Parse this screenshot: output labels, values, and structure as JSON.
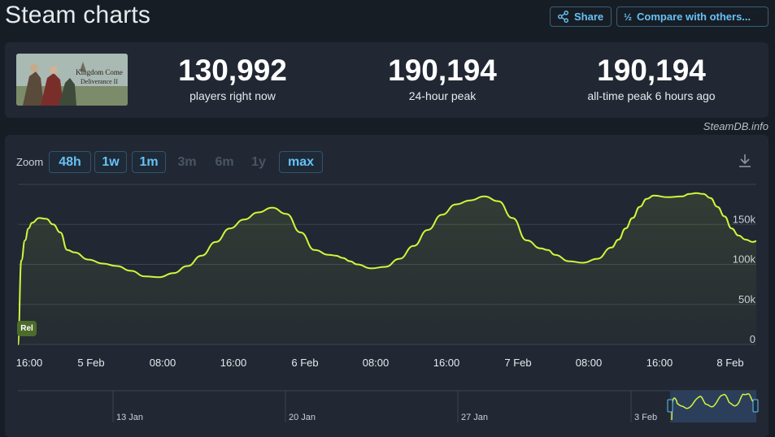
{
  "page": {
    "title": "Steam charts",
    "share_label": "Share",
    "compare_label": "Compare with others...",
    "watermark": "SteamDB.info"
  },
  "game": {
    "image_name": "Kingdom Come Deliverance II",
    "image_text": "Kingdom Come Deliverance"
  },
  "stats": [
    {
      "value": "130,992",
      "label": "players right now"
    },
    {
      "value": "190,194",
      "label": "24-hour peak"
    },
    {
      "value": "190,194",
      "label": "all-time peak 6 hours ago"
    }
  ],
  "zoom": {
    "label": "Zoom",
    "options": [
      {
        "label": "48h",
        "enabled": true
      },
      {
        "label": "1w",
        "enabled": true
      },
      {
        "label": "1m",
        "enabled": true
      },
      {
        "label": "3m",
        "enabled": false
      },
      {
        "label": "6m",
        "enabled": false
      },
      {
        "label": "1y",
        "enabled": false
      },
      {
        "label": "max",
        "enabled": true
      }
    ]
  },
  "colors": {
    "line": "#d4f53c",
    "accent": "#67c1f5"
  },
  "chart_data": {
    "type": "line",
    "title": "",
    "ylim": [
      0,
      200000
    ],
    "y_ticks": [
      "0",
      "50k",
      "100k",
      "150k"
    ],
    "x_ticks": [
      "16:00",
      "5 Feb",
      "08:00",
      "16:00",
      "6 Feb",
      "08:00",
      "16:00",
      "7 Feb",
      "08:00",
      "16:00",
      "8 Feb"
    ],
    "annotation": "Rel",
    "series": [
      {
        "x_hours": [
          0,
          1,
          2,
          3,
          4,
          6,
          8,
          10,
          12,
          14,
          16,
          20,
          24,
          28,
          32,
          36,
          40,
          44,
          48,
          52,
          56,
          60,
          64,
          68,
          72,
          76,
          80,
          84,
          88,
          90,
          92,
          94,
          96,
          100,
          104,
          108,
          112,
          116,
          120,
          124,
          128,
          132,
          136,
          140,
          144,
          148,
          150,
          152,
          156,
          160,
          164,
          168,
          170,
          172,
          174,
          176,
          178,
          180,
          184,
          188,
          190,
          192,
          194,
          196,
          198,
          200,
          202,
          204,
          206,
          208,
          209
        ],
        "values": [
          0,
          105000,
          130000,
          145000,
          152000,
          158000,
          157000,
          150000,
          140000,
          118000,
          115000,
          106000,
          101000,
          98000,
          92000,
          85000,
          84000,
          89000,
          98000,
          111000,
          128000,
          145000,
          156000,
          165000,
          171000,
          163000,
          140000,
          118000,
          112000,
          111000,
          108000,
          104000,
          100000,
          95000,
          97000,
          107000,
          123000,
          143000,
          162000,
          175000,
          180000,
          185000,
          179000,
          158000,
          130000,
          120000,
          118000,
          112000,
          104000,
          102000,
          107000,
          121000,
          131000,
          145000,
          158000,
          172000,
          182000,
          186000,
          184000,
          185000,
          188000,
          189000,
          188000,
          183000,
          172000,
          160000,
          145000,
          136000,
          131000,
          128000,
          129000
        ]
      }
    ]
  },
  "navigator": {
    "ticks": [
      "13 Jan",
      "20 Jan",
      "27 Jan",
      "3 Feb"
    ]
  }
}
